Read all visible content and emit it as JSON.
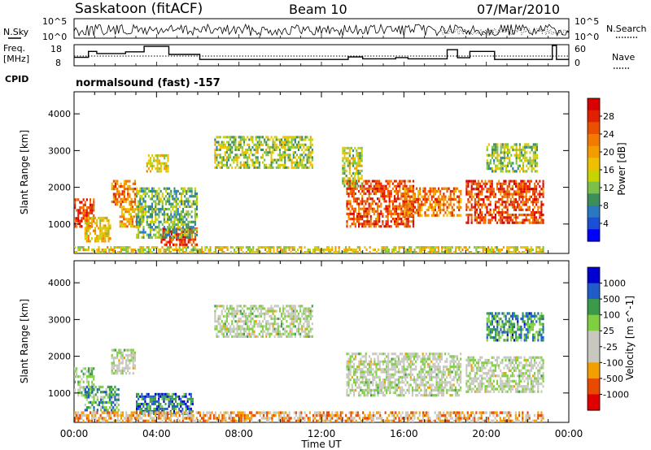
{
  "header": {
    "station": "Saskatoon (fitACF)",
    "beam": "Beam 10",
    "date": "07/Mar/2010"
  },
  "strip_labels": {
    "nsky": "N.Sky",
    "nsearch": "N.Search",
    "freq_line1": "Freq.",
    "freq_line2": "[MHz]",
    "nave": "Nave",
    "cpid": "CPID",
    "cpid_value": "normalsound (fast) -157"
  },
  "colors": {
    "frame": "#000000",
    "power_scale": [
      "#0000ff",
      "#1a4fd6",
      "#2a78c0",
      "#3c8f5a",
      "#7cc04a",
      "#c8d400",
      "#f0c000",
      "#f39c00",
      "#f27a00",
      "#ea5000",
      "#e02000",
      "#d80000"
    ],
    "velocity_scale": [
      "#e00000",
      "#ea4a00",
      "#f2a000",
      "#c8c8c0",
      "#c8c8c0",
      "#7fcf40",
      "#3a9a4a",
      "#1e5cc8",
      "#0000d0"
    ]
  },
  "chart_data": [
    {
      "type": "line",
      "name": "N.Sky / N.Search strip",
      "x_ticks_hours": [
        0,
        4,
        8,
        12,
        16,
        20,
        24
      ],
      "left_tick_labels": [
        "10^5",
        "10^0"
      ],
      "right_tick_labels": [
        "10^5",
        "10^0"
      ],
      "series": [
        {
          "name": "N.Sky",
          "style": "solid"
        },
        {
          "name": "N.Search",
          "style": "dotted"
        }
      ]
    },
    {
      "type": "line",
      "name": "Freq / Nave strip",
      "left_tick_labels": [
        "18",
        "8"
      ],
      "right_tick_labels": [
        "60",
        "0"
      ],
      "freq_ylim": [
        8,
        18
      ],
      "freq_steps": [
        {
          "x0": 0.0,
          "x1": 0.7,
          "y": 12.0
        },
        {
          "x0": 0.7,
          "x1": 1.1,
          "y": 14.8
        },
        {
          "x0": 1.1,
          "x1": 2.5,
          "y": 13.8
        },
        {
          "x0": 2.5,
          "x1": 3.4,
          "y": 14.6
        },
        {
          "x0": 3.4,
          "x1": 4.6,
          "y": 17.2
        },
        {
          "x0": 4.6,
          "x1": 6.1,
          "y": 13.4
        },
        {
          "x0": 6.1,
          "x1": 13.3,
          "y": 11.0
        },
        {
          "x0": 13.3,
          "x1": 14.0,
          "y": 12.2
        },
        {
          "x0": 14.0,
          "x1": 15.6,
          "y": 11.3
        },
        {
          "x0": 15.6,
          "x1": 16.2,
          "y": 11.9
        },
        {
          "x0": 16.2,
          "x1": 18.1,
          "y": 11.3
        },
        {
          "x0": 18.1,
          "x1": 18.6,
          "y": 15.6
        },
        {
          "x0": 18.6,
          "x1": 19.2,
          "y": 11.8
        },
        {
          "x0": 19.2,
          "x1": 20.4,
          "y": 14.8
        },
        {
          "x0": 20.4,
          "x1": 23.2,
          "y": 11.0
        },
        {
          "x0": 23.2,
          "x1": 23.4,
          "y": 17.6
        },
        {
          "x0": 23.4,
          "x1": 24.0,
          "y": 11.0
        }
      ],
      "nave_level": 12.6
    },
    {
      "type": "heatmap",
      "name": "Power",
      "xlabel": "",
      "ylabel": "Slant Range [km]",
      "x_tick_labels": [
        "00:00",
        "04:00",
        "08:00",
        "12:00",
        "16:00",
        "20:00",
        "00:00"
      ],
      "y_ticks": [
        1000,
        2000,
        3000,
        4000
      ],
      "ylim": [
        200,
        4600
      ],
      "xlim_hours": [
        0,
        24
      ],
      "colorbar_label": "Power [dB]",
      "colorbar_ticks": [
        "28",
        "24",
        "20",
        "16",
        "12",
        "8",
        "4"
      ],
      "regions": [
        {
          "t0": 0.0,
          "t1": 1.0,
          "r0": 900,
          "r1": 1700,
          "level": 0.85
        },
        {
          "t0": 0.5,
          "t1": 1.8,
          "r0": 500,
          "r1": 1200,
          "level": 0.55
        },
        {
          "t0": 1.8,
          "t1": 3.0,
          "r0": 1500,
          "r1": 2200,
          "level": 0.7
        },
        {
          "t0": 2.2,
          "t1": 3.4,
          "r0": 900,
          "r1": 1500,
          "level": 0.6
        },
        {
          "t0": 3.5,
          "t1": 4.6,
          "r0": 2400,
          "r1": 2900,
          "level": 0.5
        },
        {
          "t0": 4.2,
          "t1": 6.0,
          "r0": 400,
          "r1": 900,
          "level": 0.88
        },
        {
          "t0": 3.0,
          "t1": 6.0,
          "r0": 600,
          "r1": 2000,
          "level": 0.35
        },
        {
          "t0": 6.8,
          "t1": 11.6,
          "r0": 2500,
          "r1": 3400,
          "level": 0.42
        },
        {
          "t0": 13.2,
          "t1": 16.5,
          "r0": 900,
          "r1": 2200,
          "level": 0.8
        },
        {
          "t0": 13.0,
          "t1": 14.0,
          "r0": 2000,
          "r1": 3100,
          "level": 0.45
        },
        {
          "t0": 16.0,
          "t1": 18.8,
          "r0": 1200,
          "r1": 2000,
          "level": 0.72
        },
        {
          "t0": 19.0,
          "t1": 22.8,
          "r0": 1000,
          "r1": 2200,
          "level": 0.82
        },
        {
          "t0": 20.0,
          "t1": 22.5,
          "r0": 2400,
          "r1": 3200,
          "level": 0.4
        },
        {
          "t0": 0.0,
          "t1": 22.8,
          "r0": 200,
          "r1": 400,
          "level": 0.5
        }
      ]
    },
    {
      "type": "heatmap",
      "name": "Velocity",
      "xlabel": "Time UT",
      "ylabel": "Slant Range [km]",
      "x_tick_labels": [
        "00:00",
        "04:00",
        "08:00",
        "12:00",
        "16:00",
        "20:00",
        "00:00"
      ],
      "y_ticks": [
        1000,
        2000,
        3000,
        4000
      ],
      "ylim": [
        200,
        4600
      ],
      "xlim_hours": [
        0,
        24
      ],
      "colorbar_label": "Velocity [m s^-1]",
      "colorbar_ticks": [
        "1000",
        "500",
        "100",
        "25",
        "-25",
        "-100",
        "-500",
        "-1000"
      ],
      "regions": [
        {
          "t0": 0.0,
          "t1": 1.0,
          "r0": 900,
          "r1": 1700,
          "level": 0.6
        },
        {
          "t0": 0.5,
          "t1": 2.2,
          "r0": 500,
          "r1": 1200,
          "level": 0.7
        },
        {
          "t0": 1.8,
          "t1": 3.0,
          "r0": 1500,
          "r1": 2200,
          "level": 0.5
        },
        {
          "t0": 3.0,
          "t1": 5.8,
          "r0": 400,
          "r1": 1000,
          "level": 0.78
        },
        {
          "t0": 6.8,
          "t1": 11.6,
          "r0": 2500,
          "r1": 3400,
          "level": 0.5
        },
        {
          "t0": 13.2,
          "t1": 18.8,
          "r0": 900,
          "r1": 2100,
          "level": 0.5
        },
        {
          "t0": 19.0,
          "t1": 22.8,
          "r0": 1000,
          "r1": 2000,
          "level": 0.5
        },
        {
          "t0": 20.0,
          "t1": 22.8,
          "r0": 2400,
          "r1": 3200,
          "level": 0.72
        },
        {
          "t0": 0.0,
          "t1": 22.8,
          "r0": 200,
          "r1": 500,
          "level": 0.3
        }
      ]
    }
  ]
}
